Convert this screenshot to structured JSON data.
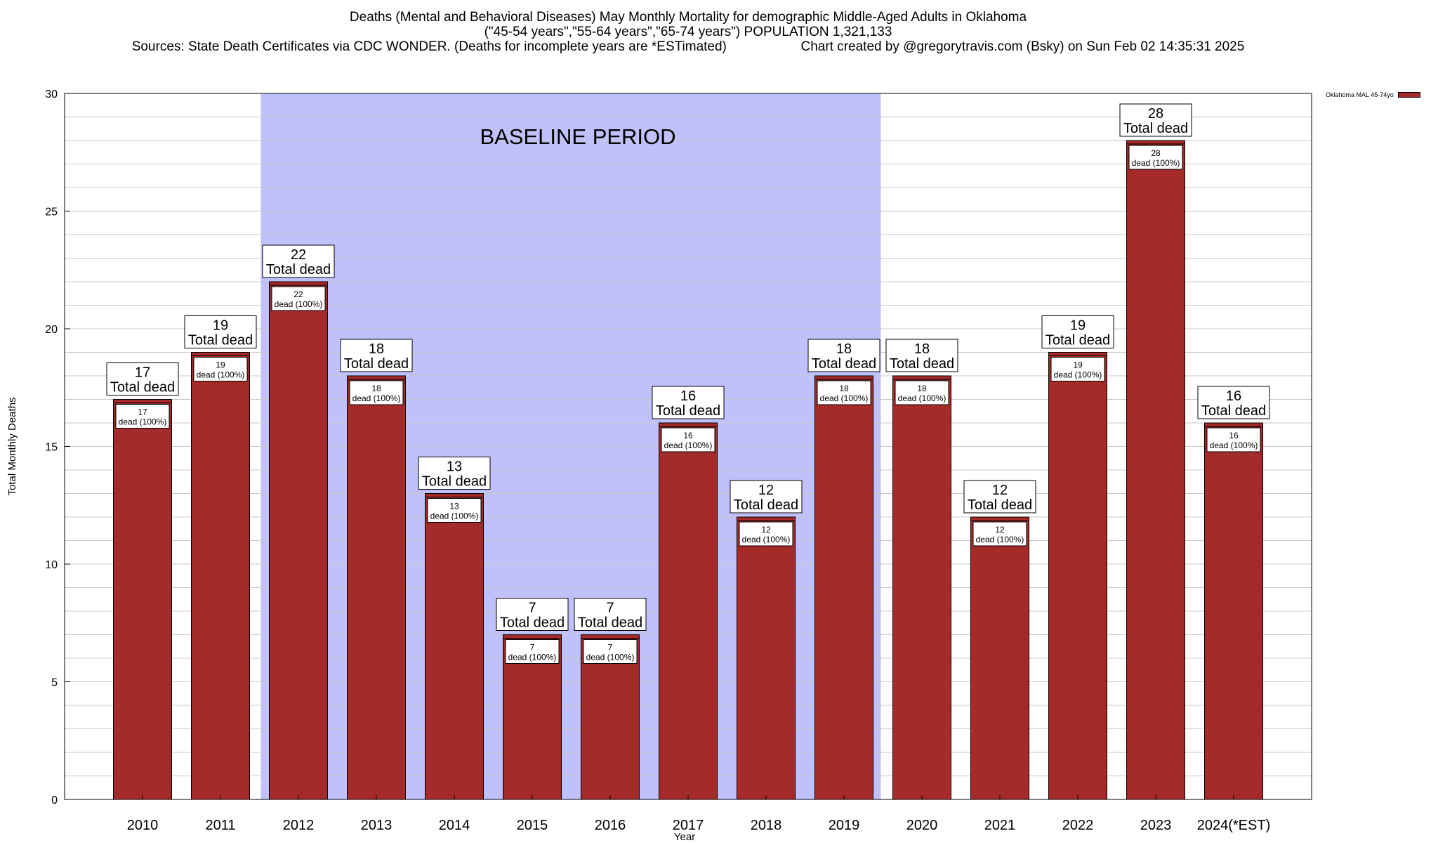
{
  "title": {
    "line1": "Deaths (Mental and Behavioral Diseases) May Monthly Mortality for demographic Middle-Aged Adults in Oklahoma",
    "line2": "(\"45-54 years\",\"55-64 years\",\"65-74 years\") POPULATION 1,321,133",
    "line3": "Sources: State Death Certificates via CDC WONDER. (Deaths for incomplete years are *ESTimated)",
    "credit": "Chart created by @gregorytravis.com (Bsky) on Sun Feb 02 14:35:31 2025"
  },
  "legend": {
    "label": "Oklahoma MAL 45-74yo",
    "color": "#a52a2a"
  },
  "colors": {
    "bar": "#a52a2a",
    "baseline_band": "#c0c0fb",
    "grid": "#c8c8c8"
  },
  "chart_data": {
    "type": "bar",
    "xlabel": "Year",
    "ylabel": "Total Monthly Deaths",
    "ylim": [
      0,
      30
    ],
    "y_ticks": [
      0,
      5,
      10,
      15,
      20,
      25,
      30
    ],
    "grid": true,
    "legend_position": "top-right",
    "categories": [
      "2010",
      "2011",
      "2012",
      "2013",
      "2014",
      "2015",
      "2016",
      "2017",
      "2018",
      "2019",
      "2020",
      "2021",
      "2022",
      "2023",
      "2024(*EST)"
    ],
    "series": [
      {
        "name": "Oklahoma MAL 45-74yo",
        "values": [
          17,
          19,
          22,
          18,
          13,
          7,
          7,
          16,
          12,
          18,
          18,
          12,
          19,
          28,
          16
        ]
      }
    ],
    "top_label_suffix": "Total dead",
    "inner_label_suffix": "dead (100%)",
    "annotation": {
      "text": "BASELINE PERIOD",
      "from": "2012",
      "to": "2019"
    }
  }
}
